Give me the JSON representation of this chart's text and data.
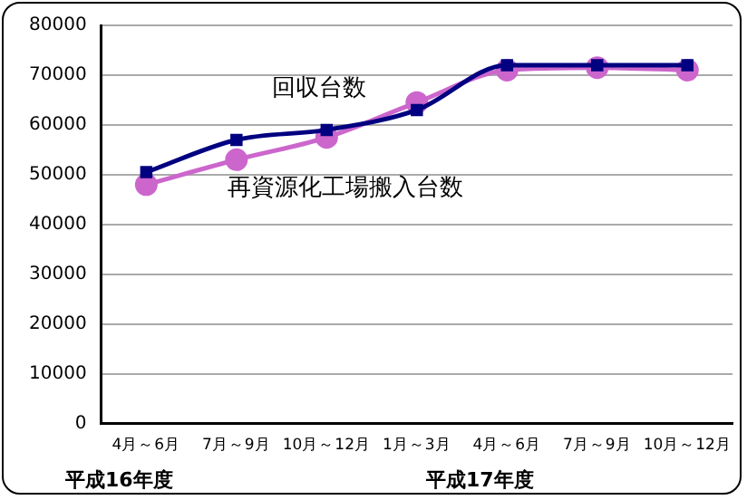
{
  "chart_data": {
    "type": "line",
    "categories": [
      "4月～6月",
      "7月～9月",
      "10月～12月",
      "1月～3月",
      "4月～6月",
      "7月～9月",
      "10月～12月"
    ],
    "series": [
      {
        "name": "回収台数",
        "color": "#000080",
        "marker": "square",
        "values": [
          50500,
          57000,
          59000,
          63000,
          72000,
          72000,
          72000
        ]
      },
      {
        "name": "再資源化工場搬入台数",
        "color": "#cc66cc",
        "marker": "circle",
        "values": [
          48000,
          53000,
          57500,
          64500,
          71000,
          71500,
          71000
        ]
      }
    ],
    "ylim": [
      0,
      80000
    ],
    "yticks": [
      0,
      10000,
      20000,
      30000,
      40000,
      50000,
      60000,
      70000,
      80000
    ],
    "grid": "y",
    "legend": false,
    "annotations": [
      "平成16年度",
      "平成17年度"
    ]
  }
}
